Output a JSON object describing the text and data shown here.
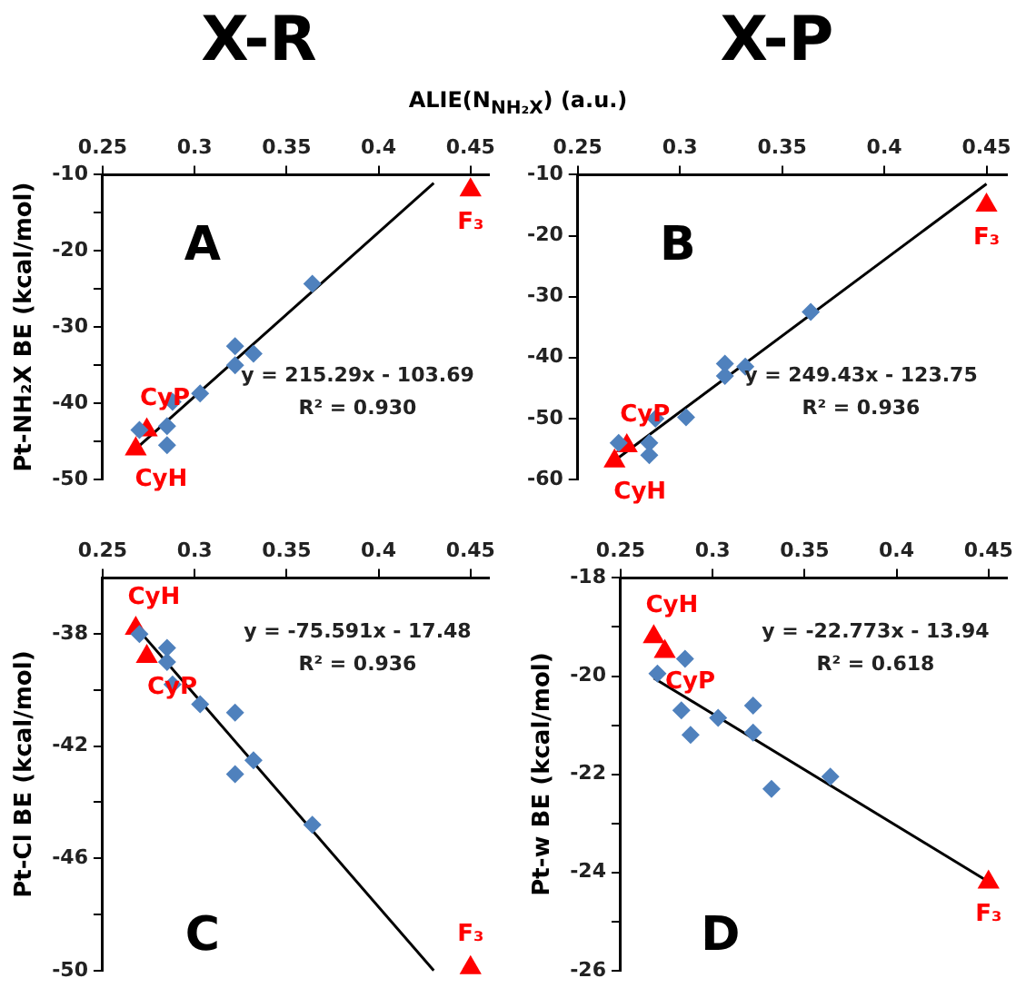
{
  "chart_data": [
    {
      "type": "scatter",
      "title": "X-R",
      "xlabel": "ALIE(N$_{NH₂X}$)  (a.u.)",
      "ylabel": "Pt-NH₂X BE (kcal/mol)",
      "xlim": [
        0.25,
        0.46
      ],
      "xticks": [
        0.25,
        0.3,
        0.35,
        0.4,
        0.45
      ],
      "ylim": [
        -50,
        -10
      ],
      "yticks": [
        -10,
        {
          "value": -15,
          "label": null
        },
        -20,
        {
          "value": -25,
          "label": null
        },
        -30,
        {
          "value": -35,
          "label": null
        },
        -40,
        {
          "value": -45,
          "label": null
        },
        -50
      ],
      "legend": false,
      "series": [
        {
          "type": "scatter",
          "marker": "diamond",
          "color": "#4f81bd",
          "x": [
            0.27,
            0.285,
            0.285,
            0.288,
            0.303,
            0.322,
            0.322,
            0.332,
            0.364
          ],
          "values": [
            -43.5,
            -43,
            -45.5,
            -39.8,
            -38.7,
            -32.5,
            -35,
            -33.5,
            -24.3
          ]
        },
        {
          "type": "scatter",
          "marker": "triangle",
          "color": "#ff0000",
          "x": [
            0.268,
            0.274,
            0.45
          ],
          "values": [
            -46,
            -43.5,
            -12
          ]
        },
        {
          "type": "line",
          "marker": "none",
          "color": "#000000",
          "x": [
            0.268,
            0.43
          ],
          "values": [
            -46,
            -11.1
          ]
        }
      ],
      "annotations": [
        "A",
        "y = 215.29x - 103.69",
        "R² = 0.930",
        {
          "text": "CyP",
          "x": 0.274,
          "y": -43.5
        },
        {
          "text": "CyH",
          "x": 0.268,
          "y": -46
        },
        {
          "text": "F₃",
          "x": 0.45,
          "y": -12
        }
      ]
    },
    {
      "type": "scatter",
      "title": "X-P",
      "xlim": [
        0.25,
        0.46
      ],
      "xticks": [
        0.25,
        0.3,
        0.35,
        0.4,
        0.45
      ],
      "ylim": [
        -60,
        -10
      ],
      "yticks": [
        -10,
        -20,
        -30,
        -40,
        -50,
        -60
      ],
      "legend": false,
      "series": [
        {
          "type": "scatter",
          "marker": "diamond",
          "color": "#4f81bd",
          "x": [
            0.27,
            0.285,
            0.285,
            0.288,
            0.303,
            0.322,
            0.322,
            0.332,
            0.364
          ],
          "values": [
            -54,
            -54,
            -56,
            -50,
            -49.8,
            -41,
            -43,
            -41.5,
            -32.5
          ]
        },
        {
          "type": "scatter",
          "marker": "triangle",
          "color": "#ff0000",
          "x": [
            0.268,
            0.274,
            0.45
          ],
          "values": [
            -57,
            -54.5,
            -15
          ]
        },
        {
          "type": "line",
          "marker": "none",
          "color": "#000000",
          "x": [
            0.268,
            0.45
          ],
          "values": [
            -56.9,
            -11.5
          ]
        }
      ],
      "annotations": [
        "B",
        "y = 249.43x - 123.75",
        "R² = 0.936",
        {
          "text": "CyP",
          "x": 0.274,
          "y": -54.5
        },
        {
          "text": "CyH",
          "x": 0.268,
          "y": -57
        },
        {
          "text": "F₃",
          "x": 0.45,
          "y": -15
        }
      ]
    },
    {
      "type": "scatter",
      "ylabel": "Pt-Cl BE (kcal/mol)",
      "xlim": [
        0.25,
        0.46
      ],
      "xticks": [
        0.25,
        0.3,
        0.35,
        0.4,
        0.45
      ],
      "ylim": [
        -50,
        -36
      ],
      "yticks": [
        -38,
        {
          "value": -40,
          "label": null
        },
        -42,
        {
          "value": -44,
          "label": null
        },
        -46,
        {
          "value": -48,
          "label": null
        },
        -50
      ],
      "legend": false,
      "series": [
        {
          "type": "scatter",
          "marker": "diamond",
          "color": "#4f81bd",
          "x": [
            0.27,
            0.285,
            0.285,
            0.288,
            0.303,
            0.322,
            0.322,
            0.332,
            0.364
          ],
          "values": [
            -38,
            -38.5,
            -39,
            -39.8,
            -40.5,
            -40.8,
            -43,
            -42.5,
            -44.8
          ]
        },
        {
          "type": "scatter",
          "marker": "triangle",
          "color": "#ff0000",
          "x": [
            0.268,
            0.274,
            0.45
          ],
          "values": [
            -37.8,
            -38.8,
            -49.9
          ]
        },
        {
          "type": "line",
          "marker": "none",
          "color": "#000000",
          "x": [
            0.268,
            0.43
          ],
          "values": [
            -37.74,
            -50
          ]
        }
      ],
      "annotations": [
        "C",
        "y = -75.591x - 17.48",
        "R² = 0.936",
        {
          "text": "CyH",
          "x": 0.268,
          "y": -37.8
        },
        {
          "text": "CyP",
          "x": 0.274,
          "y": -38.8
        },
        {
          "text": "F₃",
          "x": 0.45,
          "y": -49.9
        }
      ]
    },
    {
      "type": "scatter",
      "ylabel": "Pt-w BE (kcal/mol)",
      "xlim": [
        0.25,
        0.46
      ],
      "xticks": [
        0.25,
        0.3,
        0.35,
        0.4,
        0.45
      ],
      "ylim": [
        -26,
        -18
      ],
      "yticks": [
        -18,
        {
          "value": -19,
          "label": null
        },
        -20,
        {
          "value": -21,
          "label": null
        },
        -22,
        {
          "value": -23,
          "label": null
        },
        -24,
        {
          "value": -25,
          "label": null
        },
        -26
      ],
      "legend": false,
      "series": [
        {
          "type": "scatter",
          "marker": "diamond",
          "color": "#4f81bd",
          "x": [
            0.27,
            0.285,
            0.283,
            0.288,
            0.303,
            0.322,
            0.322,
            0.332,
            0.364
          ],
          "values": [
            -19.95,
            -19.65,
            -20.7,
            -21.2,
            -20.85,
            -20.6,
            -21.15,
            -22.3,
            -22.05
          ]
        },
        {
          "type": "scatter",
          "marker": "triangle",
          "color": "#ff0000",
          "x": [
            0.268,
            0.274,
            0.45
          ],
          "values": [
            -19.2,
            -19.5,
            -24.2
          ]
        },
        {
          "type": "line",
          "marker": "none",
          "color": "#000000",
          "x": [
            0.268,
            0.45
          ],
          "values": [
            -20.04,
            -24.19
          ]
        }
      ],
      "annotations": [
        "D",
        "y = -22.773x - 13.94",
        "R² = 0.618",
        {
          "text": "CyH",
          "x": 0.268,
          "y": -19.2
        },
        {
          "text": "CyP",
          "x": 0.274,
          "y": -19.5
        },
        {
          "text": "F₃",
          "x": 0.45,
          "y": -24.2
        }
      ]
    }
  ]
}
